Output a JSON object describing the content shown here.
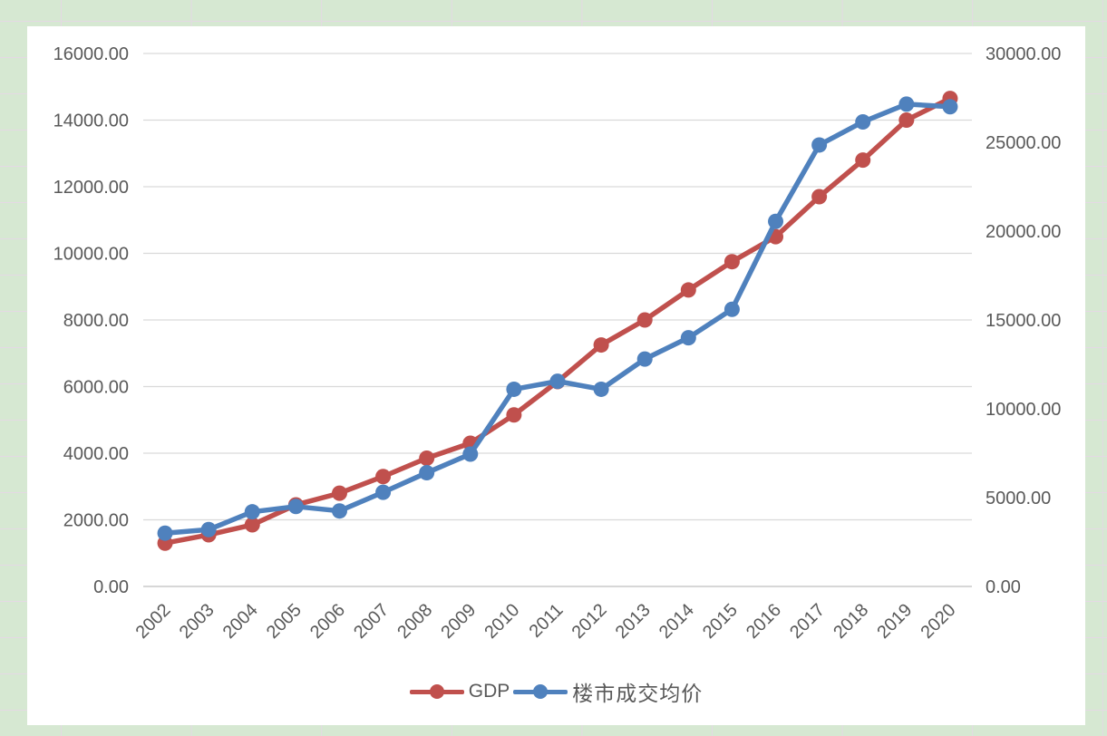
{
  "app": {
    "background_color": "#d6e8d2",
    "cell_gridline_color": "#e4d9e4",
    "card_color": "#ffffff",
    "text_color": "#595959",
    "plot_gridline_color": "#d9d9d9",
    "axis_line_color": "#bfbfbf"
  },
  "chart_data": {
    "type": "line",
    "title": "",
    "categories": [
      "2002",
      "2003",
      "2004",
      "2005",
      "2006",
      "2007",
      "2008",
      "2009",
      "2010",
      "2011",
      "2012",
      "2013",
      "2014",
      "2015",
      "2016",
      "2017",
      "2018",
      "2019",
      "2020"
    ],
    "series": [
      {
        "name": "GDP",
        "axis": "left",
        "color": "#c0504d",
        "marker": "circle",
        "values": [
          1300,
          1550,
          1850,
          2450,
          2800,
          3300,
          3850,
          4300,
          5150,
          6150,
          7250,
          8000,
          8900,
          9750,
          10500,
          11700,
          12800,
          14000,
          14650
        ]
      },
      {
        "name": "楼市成交均价",
        "axis": "right",
        "color": "#4f81bd",
        "marker": "circle",
        "values": [
          3000,
          3200,
          4200,
          4500,
          4250,
          5300,
          6400,
          7450,
          11100,
          11550,
          11100,
          12800,
          14000,
          15600,
          20550,
          24850,
          26150,
          27150,
          27000
        ]
      }
    ],
    "left_axis": {
      "min": 0,
      "max": 16000,
      "step": 2000,
      "labels": [
        "16000.00",
        "14000.00",
        "12000.00",
        "10000.00",
        "8000.00",
        "6000.00",
        "4000.00",
        "2000.00",
        "0.00"
      ]
    },
    "right_axis": {
      "min": 0,
      "max": 30000,
      "step": 5000,
      "labels": [
        "30000.00",
        "25000.00",
        "20000.00",
        "15000.00",
        "10000.00",
        "5000.00",
        "0.00"
      ]
    },
    "legend_position": "bottom",
    "grid": "horizontal"
  }
}
